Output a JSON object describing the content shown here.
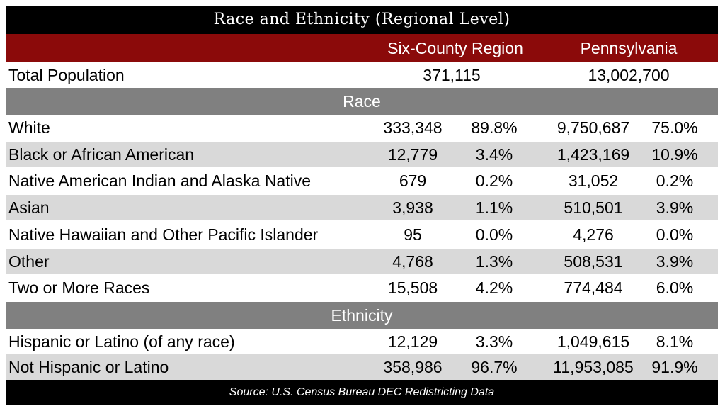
{
  "title": "Race and Ethnicity (Regional Level)",
  "columns": {
    "region": "Six-County Region",
    "state": "Pennsylvania"
  },
  "total_population": {
    "label": "Total Population",
    "region": "371,115",
    "state": "13,002,700"
  },
  "sections": {
    "race": "Race",
    "ethnicity": "Ethnicity"
  },
  "race_rows": [
    {
      "label": "White",
      "region_count": "333,348",
      "region_pct": "89.8%",
      "state_count": "9,750,687",
      "state_pct": "75.0%"
    },
    {
      "label": "Black or African American",
      "region_count": "12,779",
      "region_pct": "3.4%",
      "state_count": "1,423,169",
      "state_pct": "10.9%"
    },
    {
      "label": "Native American Indian and Alaska Native",
      "region_count": "679",
      "region_pct": "0.2%",
      "state_count": "31,052",
      "state_pct": "0.2%"
    },
    {
      "label": "Asian",
      "region_count": "3,938",
      "region_pct": "1.1%",
      "state_count": "510,501",
      "state_pct": "3.9%"
    },
    {
      "label": "Native Hawaiian and Other Pacific Islander",
      "region_count": "95",
      "region_pct": "0.0%",
      "state_count": "4,276",
      "state_pct": "0.0%"
    },
    {
      "label": "Other",
      "region_count": "4,768",
      "region_pct": "1.3%",
      "state_count": "508,531",
      "state_pct": "3.9%"
    },
    {
      "label": "Two or More Races",
      "region_count": "15,508",
      "region_pct": "4.2%",
      "state_count": "774,484",
      "state_pct": "6.0%"
    }
  ],
  "ethnicity_rows": [
    {
      "label": "Hispanic or Latino (of any race)",
      "region_count": "12,129",
      "region_pct": "3.3%",
      "state_count": "1,049,615",
      "state_pct": "8.1%"
    },
    {
      "label": "Not Hispanic or Latino",
      "region_count": "358,986",
      "region_pct": "96.7%",
      "state_count": "11,953,085",
      "state_pct": "91.9%"
    }
  ],
  "source": "Source: U.S. Census Bureau DEC Redistricting Data",
  "colors": {
    "header_red": "#8b0a0a",
    "section_gray": "#808080",
    "row_gray": "#d9d9d9",
    "bar_black": "#000000"
  }
}
